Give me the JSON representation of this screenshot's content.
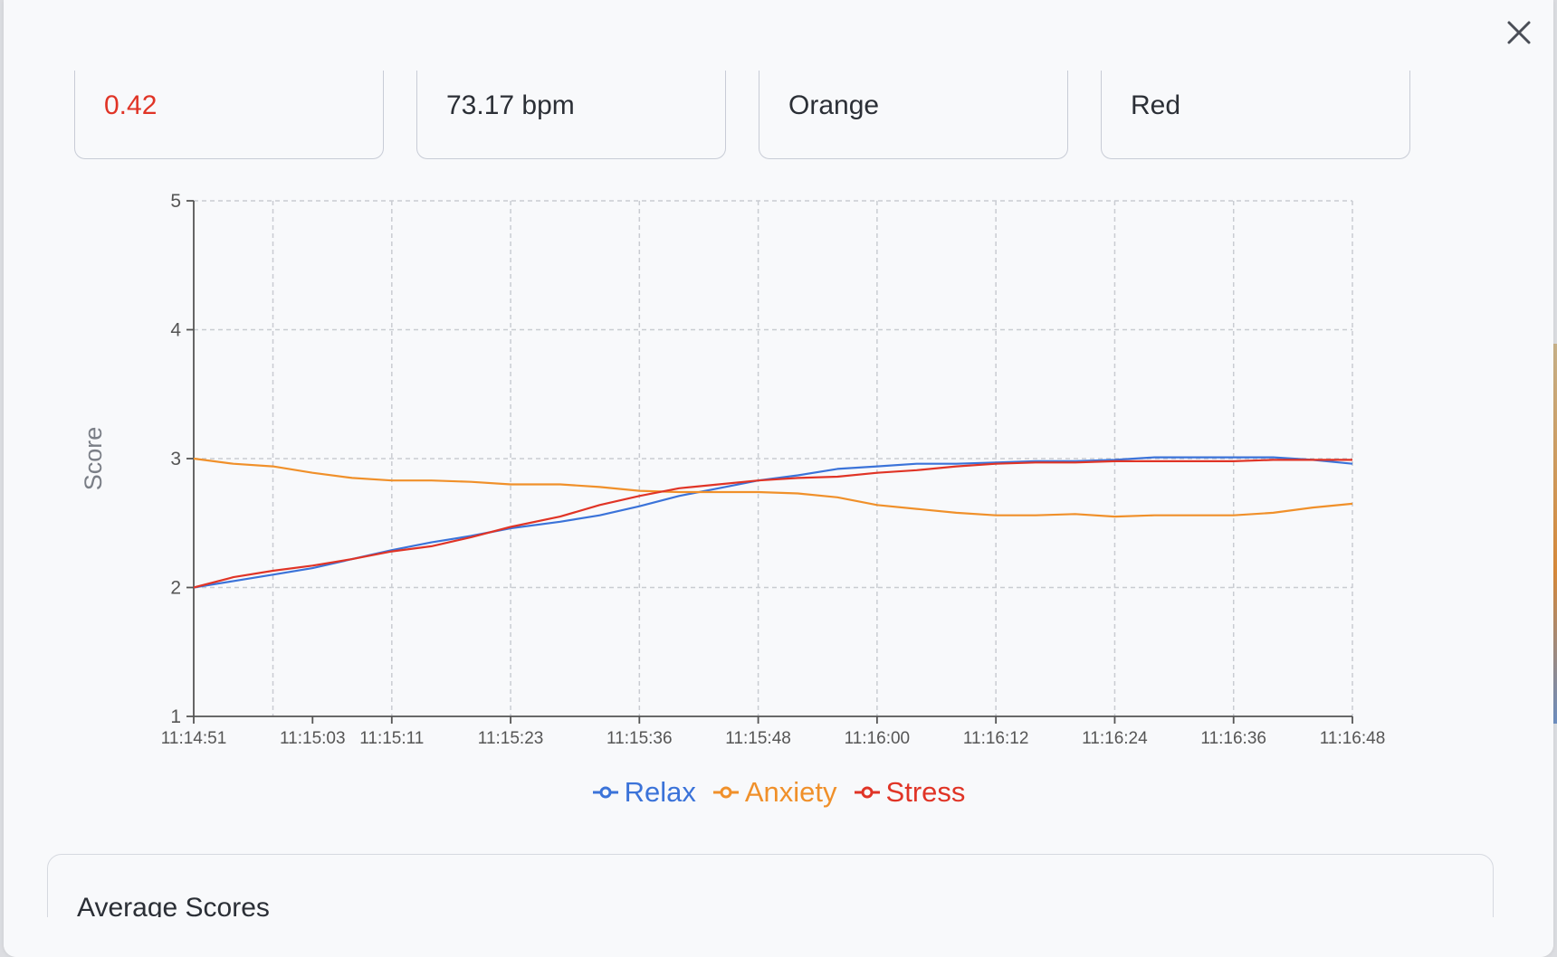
{
  "cards": [
    {
      "value": "0.42",
      "alert": true
    },
    {
      "value": "73.17 bpm",
      "alert": false
    },
    {
      "value": "Orange",
      "alert": false
    },
    {
      "value": "Red",
      "alert": false
    }
  ],
  "average": {
    "title": "Average Scores"
  },
  "icons": {
    "close": "close-icon",
    "legend_marker": "line-circle-marker"
  },
  "colors": {
    "relax": "#3b73d9",
    "anxiety": "#f0902a",
    "stress": "#e03426",
    "alert": "#e03426"
  },
  "chart_data": {
    "type": "line",
    "ylabel": "Score",
    "xlabel": "",
    "ylim": [
      1,
      5
    ],
    "yticks": [
      1,
      2,
      3,
      4,
      5
    ],
    "xlim": [
      "11:14:51",
      "11:16:48"
    ],
    "xticks": [
      "11:14:51",
      "11:15:03",
      "11:15:11",
      "11:15:23",
      "11:15:36",
      "11:15:48",
      "11:16:00",
      "11:16:12",
      "11:16:24",
      "11:16:36",
      "11:16:48"
    ],
    "x_vertical_gridlines": [
      "11:14:59",
      "11:15:11",
      "11:15:23",
      "11:15:36",
      "11:15:48",
      "11:16:00",
      "11:16:12",
      "11:16:24",
      "11:16:36",
      "11:16:48"
    ],
    "grid": true,
    "legend": "bottom-center",
    "x": [
      "11:14:51",
      "11:14:55",
      "11:14:59",
      "11:15:03",
      "11:15:07",
      "11:15:11",
      "11:15:15",
      "11:15:19",
      "11:15:23",
      "11:15:28",
      "11:15:32",
      "11:15:36",
      "11:15:40",
      "11:15:44",
      "11:15:48",
      "11:15:52",
      "11:15:56",
      "11:16:00",
      "11:16:04",
      "11:16:08",
      "11:16:12",
      "11:16:16",
      "11:16:20",
      "11:16:24",
      "11:16:28",
      "11:16:32",
      "11:16:36",
      "11:16:40",
      "11:16:44",
      "11:16:48"
    ],
    "series": [
      {
        "name": "Relax",
        "color": "#3b73d9",
        "values": [
          2.0,
          2.05,
          2.1,
          2.15,
          2.22,
          2.29,
          2.35,
          2.4,
          2.46,
          2.51,
          2.56,
          2.63,
          2.71,
          2.77,
          2.83,
          2.87,
          2.92,
          2.94,
          2.96,
          2.96,
          2.97,
          2.98,
          2.98,
          2.99,
          3.01,
          3.01,
          3.01,
          3.01,
          2.99,
          2.96
        ]
      },
      {
        "name": "Anxiety",
        "color": "#f0902a",
        "values": [
          3.0,
          2.96,
          2.94,
          2.89,
          2.85,
          2.83,
          2.83,
          2.82,
          2.8,
          2.8,
          2.78,
          2.75,
          2.74,
          2.74,
          2.74,
          2.73,
          2.7,
          2.64,
          2.61,
          2.58,
          2.56,
          2.56,
          2.57,
          2.55,
          2.56,
          2.56,
          2.56,
          2.58,
          2.62,
          2.65
        ]
      },
      {
        "name": "Stress",
        "color": "#e03426",
        "values": [
          2.0,
          2.08,
          2.13,
          2.17,
          2.22,
          2.28,
          2.32,
          2.39,
          2.47,
          2.55,
          2.64,
          2.71,
          2.77,
          2.8,
          2.83,
          2.85,
          2.86,
          2.89,
          2.91,
          2.94,
          2.96,
          2.97,
          2.97,
          2.98,
          2.98,
          2.98,
          2.98,
          2.99,
          2.99,
          2.99
        ]
      }
    ]
  }
}
